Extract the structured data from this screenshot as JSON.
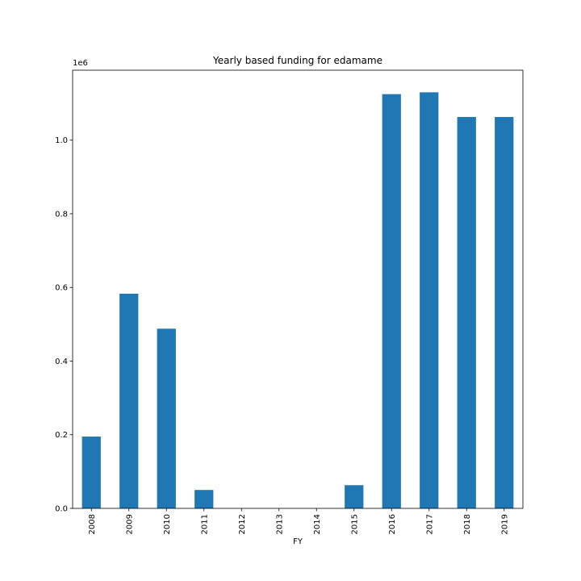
{
  "chart_data": {
    "type": "bar",
    "title": "Yearly based funding for edamame",
    "xlabel": "FY",
    "ylabel": "",
    "offset_label": "1e6",
    "categories": [
      "2008",
      "2009",
      "2010",
      "2011",
      "2012",
      "2013",
      "2014",
      "2015",
      "2016",
      "2017",
      "2018",
      "2019"
    ],
    "values": [
      195000,
      583000,
      488000,
      50000,
      0,
      0,
      0,
      63000,
      1125000,
      1130000,
      1063000,
      1063000
    ],
    "ylim": [
      0,
      1190000
    ],
    "yticks": [
      0,
      200000,
      400000,
      600000,
      800000,
      1000000
    ],
    "ytick_labels": [
      "0.0",
      "0.2",
      "0.4",
      "0.6",
      "0.8",
      "1.0"
    ],
    "bar_color": "#1f77b4",
    "grid": false,
    "legend": "none"
  }
}
